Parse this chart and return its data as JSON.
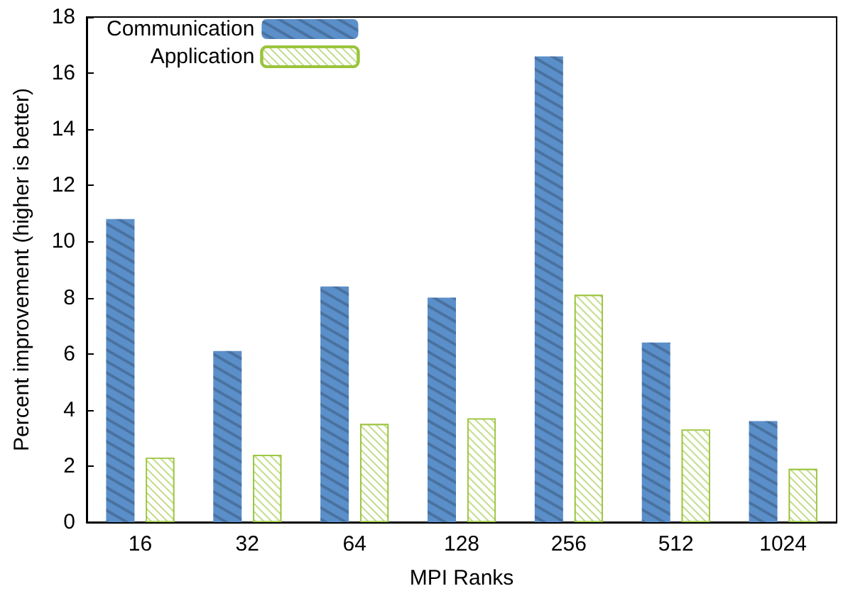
{
  "chart_data": {
    "type": "bar",
    "xlabel": "MPI Ranks",
    "ylabel": "Percent improvement (higher is better)",
    "categories": [
      "16",
      "32",
      "64",
      "128",
      "256",
      "512",
      "1024"
    ],
    "series": [
      {
        "name": "Communication",
        "color": "#5b8fc9",
        "values": [
          10.8,
          6.1,
          8.4,
          8.0,
          16.6,
          6.4,
          3.6
        ]
      },
      {
        "name": "Application",
        "color": "#9ac43c",
        "values": [
          2.3,
          2.4,
          3.5,
          3.7,
          8.1,
          3.3,
          1.9
        ]
      }
    ],
    "ylim": [
      0,
      18
    ],
    "yticks": [
      0,
      2,
      4,
      6,
      8,
      10,
      12,
      14,
      16,
      18
    ],
    "grid": false,
    "legend": "top left"
  }
}
